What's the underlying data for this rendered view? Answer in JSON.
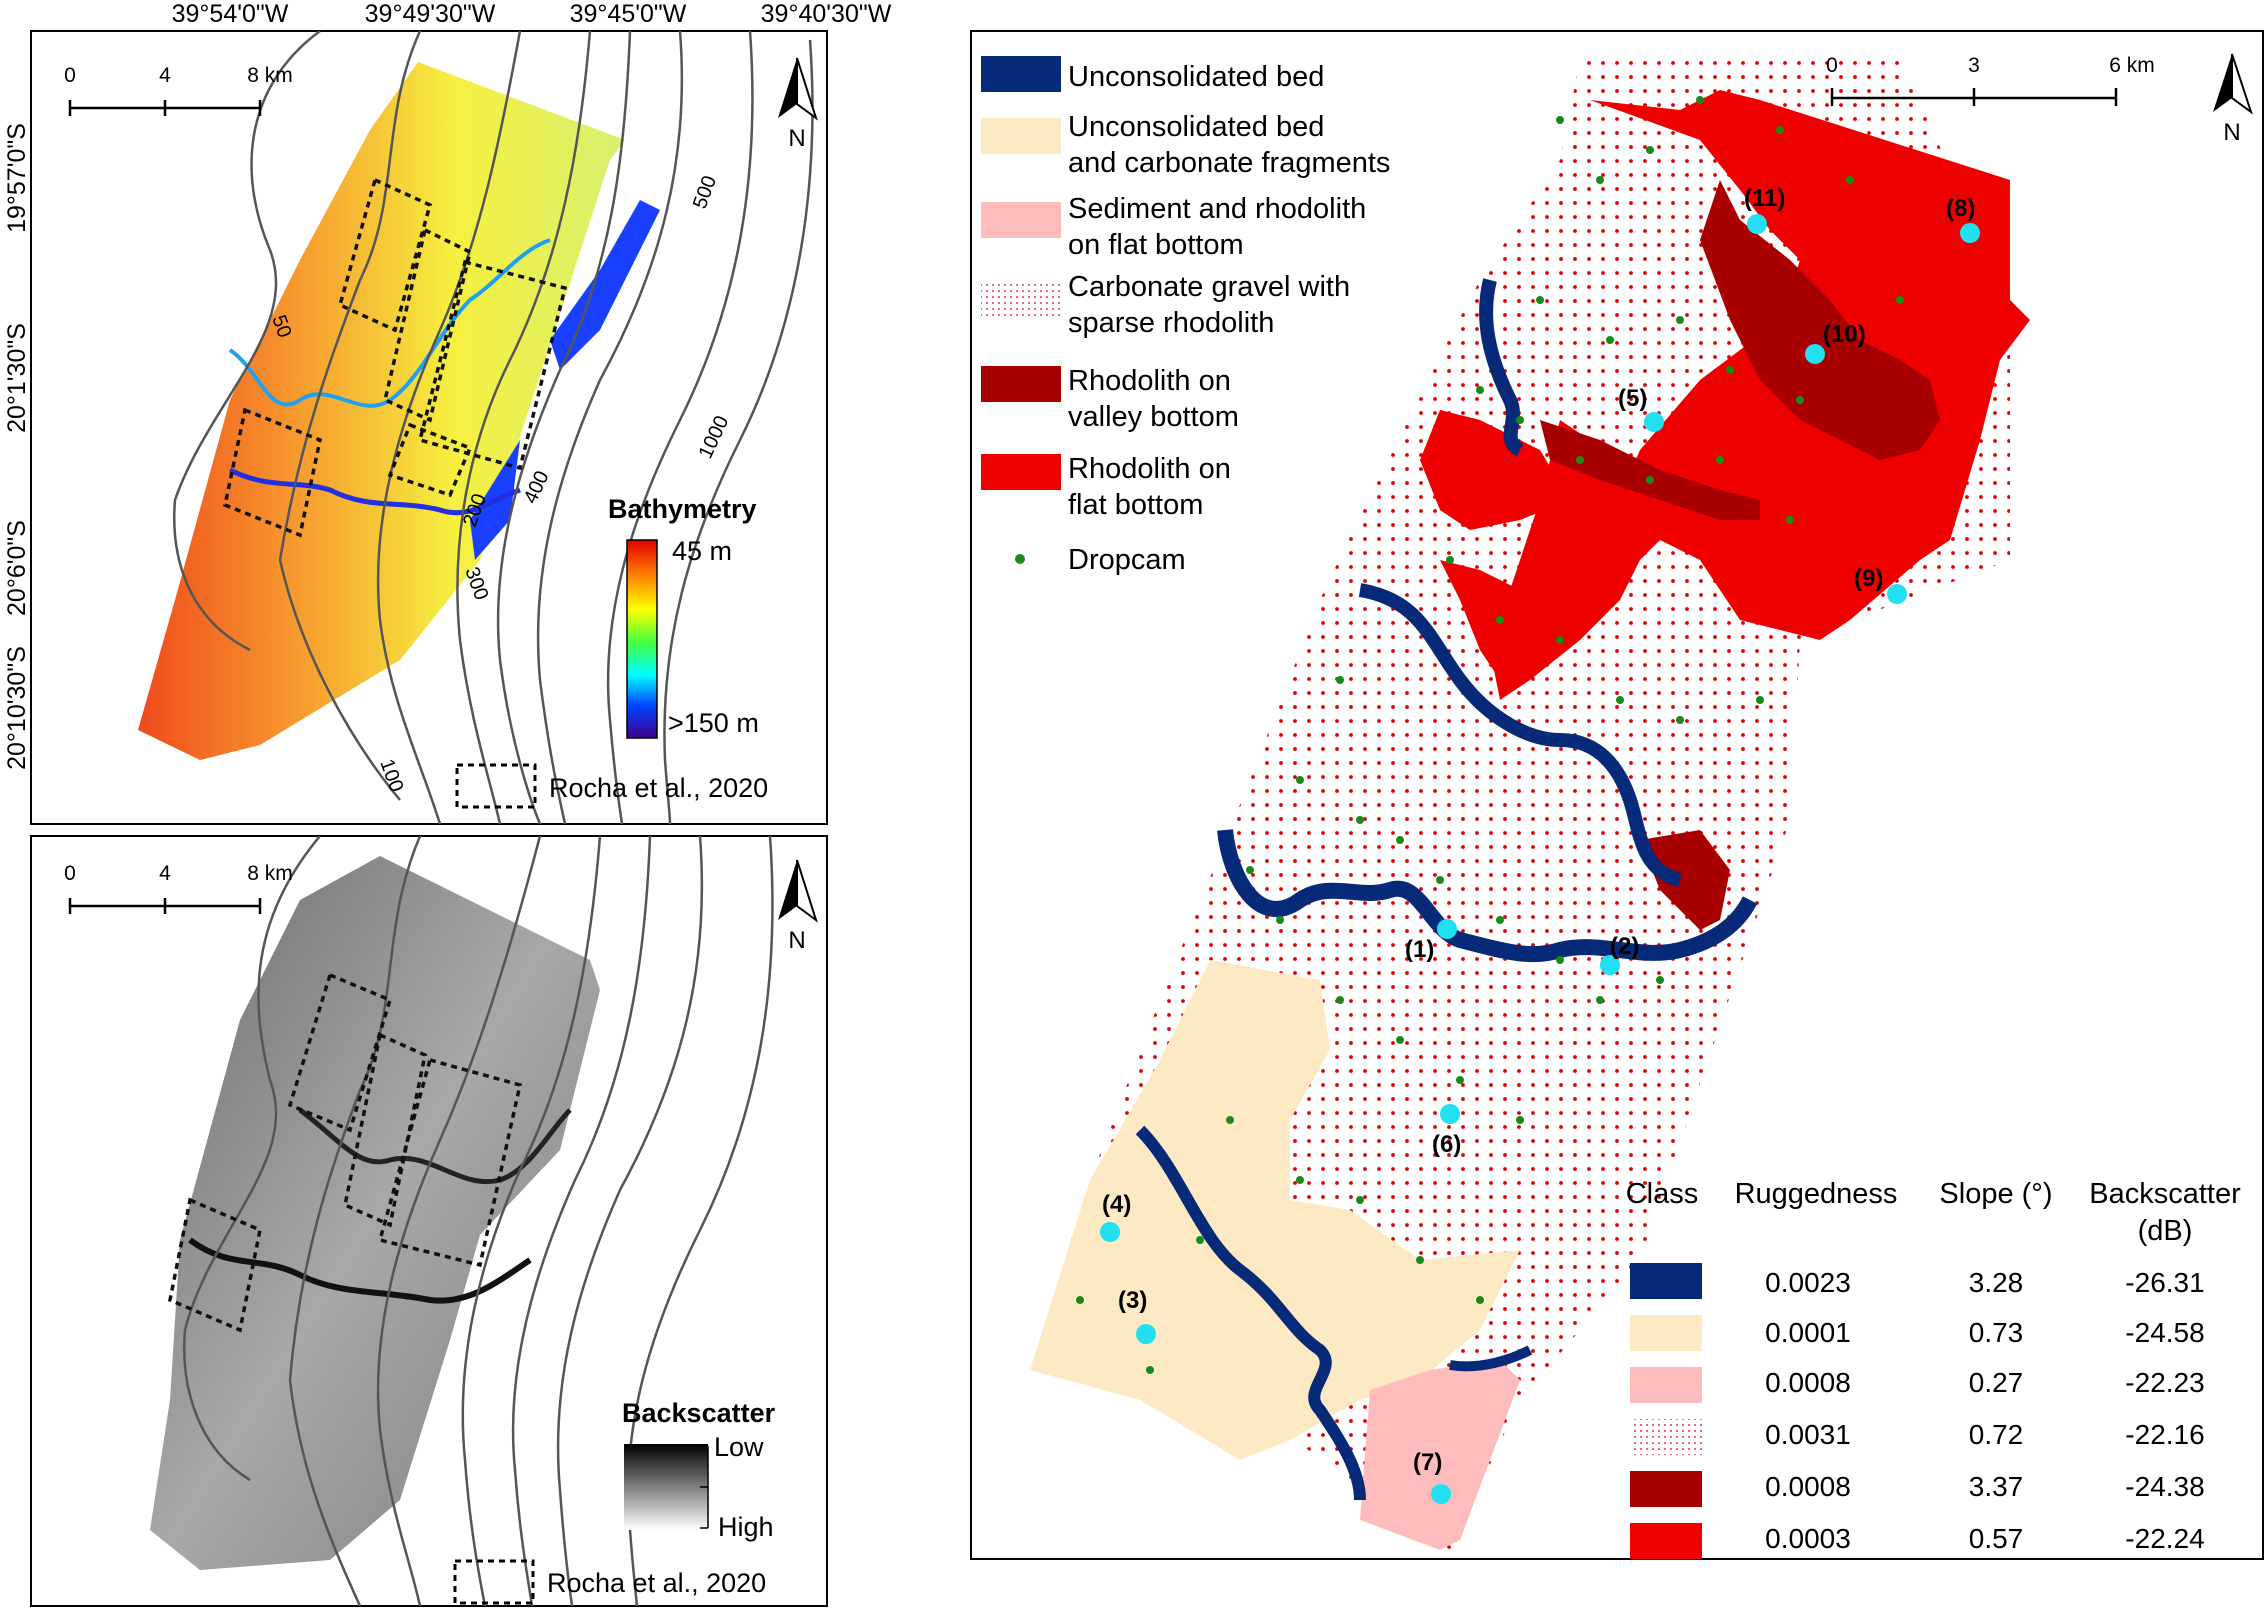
{
  "top_left": {
    "lon_labels": [
      "39°54'0\"W",
      "39°49'30\"W",
      "39°45'0\"W",
      "39°40'30\"W"
    ],
    "lat_labels": [
      "19°57'0\"S",
      "20°1'30\"S",
      "20°6'0\"S",
      "20°10'30\"S"
    ],
    "scale_ticks": [
      "0",
      "4",
      "8 km"
    ],
    "north": "N",
    "contour_labels": [
      "50",
      "100",
      "200",
      "300",
      "400",
      "500",
      "1000"
    ],
    "legend_title": "Bathymetry",
    "legend_top": "45 m",
    "legend_bottom": ">150 m",
    "reference": "Rocha et al., 2020",
    "colors": {
      "shallow": "#f0501e",
      "mid": "#f8f040",
      "deep": "#1040ff"
    }
  },
  "bottom_left": {
    "scale_ticks": [
      "0",
      "4",
      "8 km"
    ],
    "north": "N",
    "legend_title": "Backscatter",
    "legend_low": "Low",
    "legend_high": "High",
    "reference": "Rocha et al., 2020"
  },
  "right": {
    "scale_ticks": [
      "0",
      "3",
      "6 km"
    ],
    "north": "N",
    "legend_items": [
      {
        "line1": "Unconsolidated bed",
        "line2": "",
        "color": "#062a78"
      },
      {
        "line1": "Unconsolidated bed",
        "line2": "and carbonate fragments",
        "color": "#fde9c4"
      },
      {
        "line1": "Sediment and rhodolith",
        "line2": "on flat bottom",
        "color": "#ffbcbc"
      },
      {
        "line1": "Carbonate gravel with",
        "line2": "sparse rhodolith",
        "color": "dots"
      },
      {
        "line1": "Rhodolith on",
        "line2": "valley bottom",
        "color": "#a80000"
      },
      {
        "line1": "Rhodolith on",
        "line2": " flat bottom",
        "color": "#ee0000"
      }
    ],
    "dropcam_label": "Dropcam",
    "stations": [
      "(1)",
      "(2)",
      "(3)",
      "(4)",
      "(5)",
      "(6)",
      "(7)",
      "(8)",
      "(9)",
      "(10)",
      "(11)"
    ],
    "table": {
      "headers": [
        "Class",
        "Ruggedness",
        "Slope (°)",
        "Backscatter",
        "(dB)"
      ],
      "rows": [
        {
          "ruggedness": "0.0023",
          "slope": "3.28",
          "backscatter": "-26.31",
          "color": "#062a78"
        },
        {
          "ruggedness": "0.0001",
          "slope": "0.73",
          "backscatter": "-24.58",
          "color": "#fde9c4"
        },
        {
          "ruggedness": "0.0008",
          "slope": "0.27",
          "backscatter": "-22.23",
          "color": "#ffbcbc"
        },
        {
          "ruggedness": "0.0031",
          "slope": "0.72",
          "backscatter": "-22.16",
          "color": "dots"
        },
        {
          "ruggedness": "0.0008",
          "slope": "3.37",
          "backscatter": "-24.38",
          "color": "#a80000"
        },
        {
          "ruggedness": "0.0003",
          "slope": "0.57",
          "backscatter": "-22.24",
          "color": "#ee0000"
        }
      ]
    }
  }
}
